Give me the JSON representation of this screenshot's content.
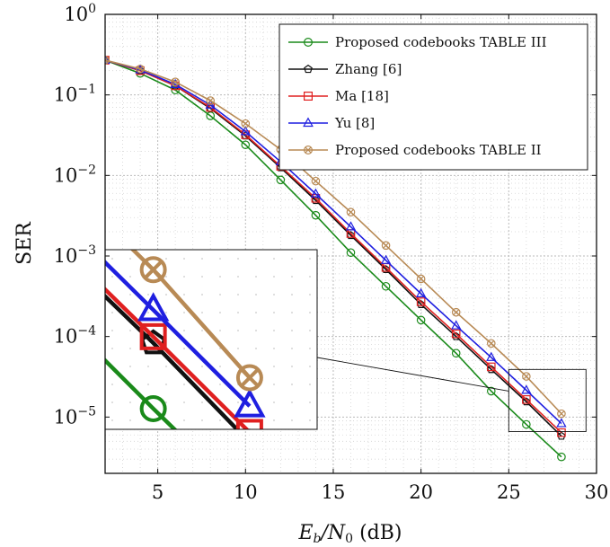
{
  "chart_data": {
    "type": "line",
    "title": "",
    "xlabel": "E_b/N_0 (dB)",
    "xlabel_parts": {
      "main": "E",
      "sub1": "b",
      "slash": "/N",
      "sub2": "0",
      "unit": " (dB)"
    },
    "ylabel": "SER",
    "y_scale": "log",
    "xlim": [
      2,
      30
    ],
    "ylim": [
      2e-06,
      1
    ],
    "x_ticks": [
      5,
      10,
      15,
      20,
      25,
      30
    ],
    "y_ticks": [
      {
        "value": 1,
        "base": "10",
        "exp": "0"
      },
      {
        "value": 0.1,
        "base": "10",
        "exp": "−1"
      },
      {
        "value": 0.01,
        "base": "10",
        "exp": "−2"
      },
      {
        "value": 0.001,
        "base": "10",
        "exp": "−3"
      },
      {
        "value": 0.0001,
        "base": "10",
        "exp": "−4"
      },
      {
        "value": 1e-05,
        "base": "10",
        "exp": "−5"
      }
    ],
    "grid": true,
    "legend_position": "top-right",
    "x": [
      2,
      4,
      6,
      8,
      10,
      12,
      14,
      16,
      18,
      20,
      22,
      24,
      26,
      28
    ],
    "series": [
      {
        "name": "Proposed codebooks TABLE III",
        "color": "#1a8a1a",
        "marker": "circle",
        "values": [
          0.27,
          0.185,
          0.115,
          0.055,
          0.024,
          0.0088,
          0.0032,
          0.0011,
          0.00042,
          0.00016,
          6.2e-05,
          2.1e-05,
          8.1e-06,
          3.2e-06
        ]
      },
      {
        "name": "Zhang [6]",
        "color": "#111111",
        "marker": "pentagon",
        "values": [
          0.27,
          0.2,
          0.13,
          0.068,
          0.031,
          0.0125,
          0.0049,
          0.0018,
          0.00068,
          0.00025,
          0.0001,
          3.9e-05,
          1.55e-05,
          5.8e-06
        ]
      },
      {
        "name": "Ma [18]",
        "color": "#e02020",
        "marker": "square",
        "values": [
          0.27,
          0.2,
          0.13,
          0.07,
          0.032,
          0.013,
          0.0052,
          0.0019,
          0.00072,
          0.00027,
          0.000108,
          4.2e-05,
          1.65e-05,
          6.4e-06
        ]
      },
      {
        "name": "Yu [8]",
        "color": "#1f1fe0",
        "marker": "triangle",
        "values": [
          0.27,
          0.205,
          0.135,
          0.075,
          0.035,
          0.0148,
          0.0059,
          0.0023,
          0.00088,
          0.00034,
          0.000136,
          5.5e-05,
          2.15e-05,
          8.3e-06
        ]
      },
      {
        "name": "Proposed codebooks TABLE II",
        "color": "#b88a55",
        "marker": "circle-x",
        "values": [
          0.27,
          0.21,
          0.145,
          0.085,
          0.044,
          0.021,
          0.0085,
          0.0035,
          0.00135,
          0.00052,
          0.0002,
          8.2e-05,
          3.2e-05,
          1.1e-05
        ]
      }
    ]
  }
}
